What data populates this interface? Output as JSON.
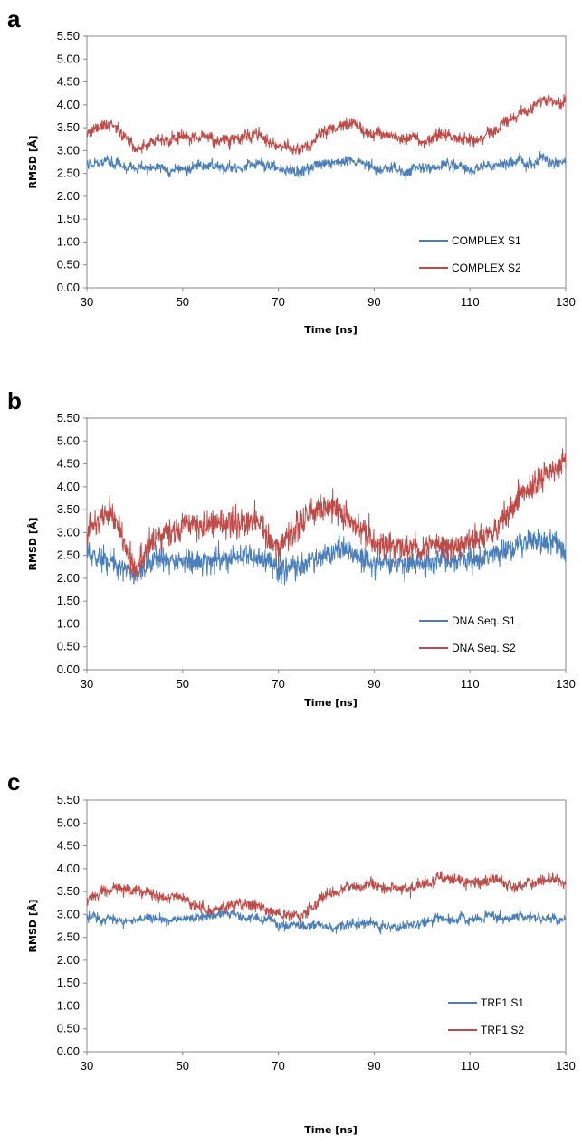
{
  "colors": {
    "s1": "#4a7ebb",
    "s2": "#be4b48",
    "frame": "#888888"
  },
  "chart_data": [
    {
      "panel": "a",
      "type": "line",
      "xlabel": "Time [ns]",
      "ylabel": "RMSD [Å]",
      "xlim": [
        30,
        130
      ],
      "ylim": [
        0,
        5.5
      ],
      "xticks": [
        "30",
        "50",
        "70",
        "90",
        "110",
        "130"
      ],
      "yticks": [
        "0.00",
        "0.50",
        "1.00",
        "1.50",
        "2.00",
        "2.50",
        "3.00",
        "3.50",
        "4.00",
        "4.50",
        "5.00",
        "5.50"
      ],
      "legend_position": "bottom-right",
      "x": [
        30,
        35,
        40,
        45,
        50,
        55,
        60,
        65,
        70,
        75,
        80,
        85,
        90,
        95,
        100,
        105,
        110,
        115,
        120,
        125,
        130
      ],
      "series": [
        {
          "name": "COMPLEX S1",
          "color": "#4a7ebb",
          "values": [
            2.7,
            2.75,
            2.6,
            2.65,
            2.6,
            2.65,
            2.6,
            2.7,
            2.6,
            2.55,
            2.7,
            2.75,
            2.6,
            2.55,
            2.6,
            2.65,
            2.6,
            2.7,
            2.75,
            2.8,
            2.75
          ]
        },
        {
          "name": "COMPLEX S2",
          "color": "#be4b48",
          "values": [
            3.3,
            3.65,
            3.0,
            3.3,
            3.25,
            3.3,
            3.2,
            3.4,
            3.1,
            3.0,
            3.5,
            3.6,
            3.35,
            3.3,
            3.25,
            3.35,
            3.25,
            3.45,
            3.8,
            4.05,
            4.1
          ]
        }
      ]
    },
    {
      "panel": "b",
      "type": "line",
      "xlabel": "Time [ns]",
      "ylabel": "RMSD [Å]",
      "xlim": [
        30,
        130
      ],
      "ylim": [
        0,
        5.5
      ],
      "xticks": [
        "30",
        "50",
        "70",
        "90",
        "110",
        "130"
      ],
      "yticks": [
        "0.00",
        "0.50",
        "1.00",
        "1.50",
        "2.00",
        "2.50",
        "3.00",
        "3.50",
        "4.00",
        "4.50",
        "5.00",
        "5.50"
      ],
      "legend_position": "bottom-right",
      "x": [
        30,
        35,
        40,
        45,
        50,
        55,
        60,
        65,
        70,
        75,
        80,
        85,
        90,
        95,
        100,
        105,
        110,
        115,
        120,
        125,
        130
      ],
      "series": [
        {
          "name": "DNA Seq. S1",
          "color": "#4a7ebb",
          "values": [
            2.5,
            2.4,
            2.1,
            2.4,
            2.3,
            2.4,
            2.4,
            2.5,
            2.2,
            2.3,
            2.5,
            2.6,
            2.3,
            2.3,
            2.3,
            2.4,
            2.4,
            2.5,
            2.7,
            2.8,
            2.6
          ]
        },
        {
          "name": "DNA Seq. S2",
          "color": "#be4b48",
          "values": [
            3.0,
            3.5,
            2.2,
            3.0,
            3.1,
            3.1,
            3.2,
            3.3,
            2.6,
            3.3,
            3.6,
            3.3,
            2.8,
            2.7,
            2.6,
            2.7,
            2.8,
            3.0,
            3.7,
            4.2,
            4.6
          ]
        }
      ]
    },
    {
      "panel": "c",
      "type": "line",
      "xlabel": "Time [ns]",
      "ylabel": "RMSD [Å]",
      "xlim": [
        30,
        130
      ],
      "ylim": [
        0,
        5.5
      ],
      "xticks": [
        "30",
        "50",
        "70",
        "90",
        "110",
        "130"
      ],
      "yticks": [
        "0.00",
        "0.50",
        "1.00",
        "1.50",
        "2.00",
        "2.50",
        "3.00",
        "3.50",
        "4.00",
        "4.50",
        "5.00",
        "5.50"
      ],
      "legend_position": "bottom-right",
      "x": [
        30,
        35,
        40,
        45,
        50,
        55,
        60,
        65,
        70,
        75,
        80,
        85,
        90,
        95,
        100,
        105,
        110,
        115,
        120,
        125,
        130
      ],
      "series": [
        {
          "name": "TRF1 S1",
          "color": "#4a7ebb",
          "values": [
            2.9,
            2.9,
            2.85,
            2.9,
            2.9,
            2.95,
            3.0,
            2.95,
            2.8,
            2.75,
            2.75,
            2.8,
            2.8,
            2.75,
            2.85,
            2.9,
            2.9,
            2.95,
            2.95,
            2.95,
            2.9
          ]
        },
        {
          "name": "TRF1 S2",
          "color": "#be4b48",
          "values": [
            3.3,
            3.6,
            3.5,
            3.45,
            3.3,
            3.1,
            3.2,
            3.2,
            3.0,
            2.95,
            3.45,
            3.65,
            3.6,
            3.55,
            3.65,
            3.8,
            3.7,
            3.75,
            3.6,
            3.8,
            3.7
          ]
        }
      ]
    }
  ]
}
